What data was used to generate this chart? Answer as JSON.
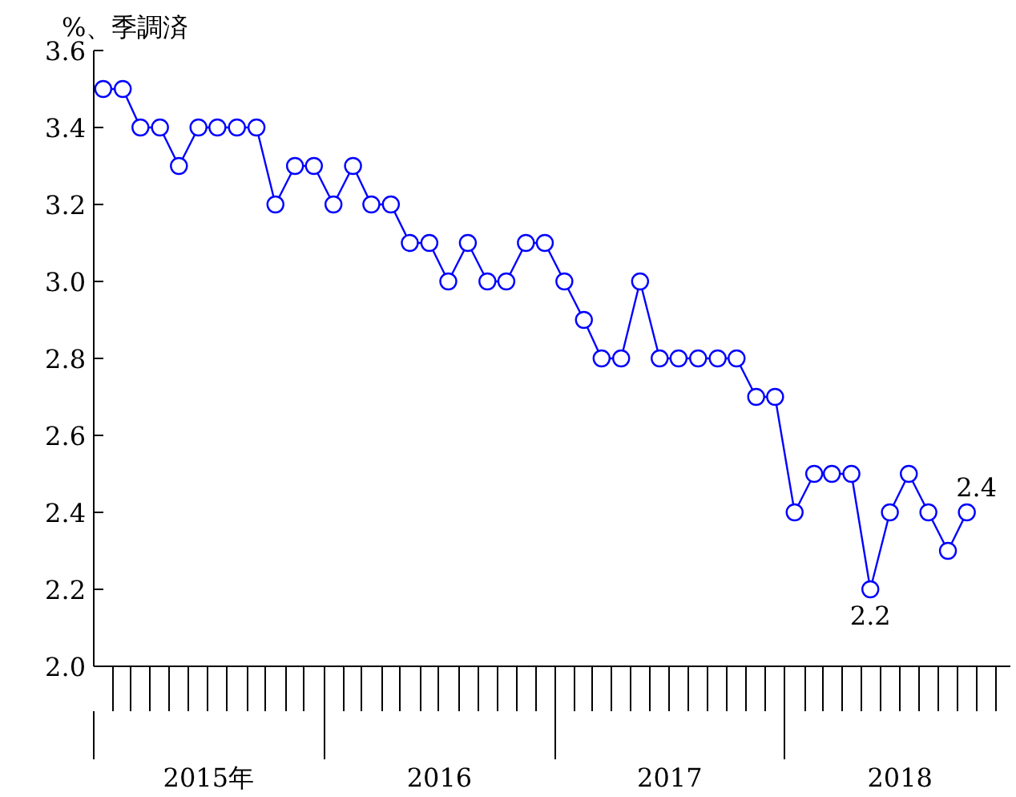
{
  "chart_data": {
    "type": "line",
    "ylabel": "%、季調済",
    "x": [
      "2015-01-16",
      "2015-02-16",
      "2015-03-16",
      "2015-04-16",
      "2015-05-16",
      "2015-06-16",
      "2015-07-16",
      "2015-08-16",
      "2015-09-16",
      "2015-10-16",
      "2015-11-16",
      "2015-12-16",
      "2016-01-16",
      "2016-02-16",
      "2016-03-16",
      "2016-04-16",
      "2016-05-16",
      "2016-06-16",
      "2016-07-16",
      "2016-08-16",
      "2016-09-16",
      "2016-10-16",
      "2016-11-16",
      "2016-12-16",
      "2017-01-16",
      "2017-02-16",
      "2017-03-16",
      "2017-04-16",
      "2017-05-16",
      "2017-06-16",
      "2017-07-16",
      "2017-08-16",
      "2017-09-16",
      "2017-10-16",
      "2017-11-16",
      "2017-12-16",
      "2018-01-16",
      "2018-02-16",
      "2018-03-16",
      "2018-04-16",
      "2018-05-16",
      "2018-06-16",
      "2018-07-16",
      "2018-08-16",
      "2018-09-16",
      "2018-10-16"
    ],
    "series": [
      {
        "color": "#0000ff",
        "values": [
          3.5,
          3.5,
          3.4,
          3.4,
          3.3,
          3.4,
          3.4,
          3.4,
          3.4,
          3.2,
          3.3,
          3.3,
          3.2,
          3.3,
          3.2,
          3.2,
          3.1,
          3.1,
          3.0,
          3.1,
          3.0,
          3.0,
          3.1,
          3.1,
          3.0,
          2.9,
          2.8,
          2.8,
          3.0,
          2.8,
          2.8,
          2.8,
          2.8,
          2.8,
          2.7,
          2.7,
          2.4,
          2.5,
          2.5,
          2.5,
          2.2,
          2.4,
          2.5,
          2.4,
          2.3,
          2.4
        ]
      }
    ],
    "marker": "circle",
    "line_style": "solid",
    "grid": false,
    "ylim": [
      2.0,
      3.6
    ],
    "yticks": [
      {
        "value": 2.0,
        "label": "2.0"
      },
      2.2,
      2.4,
      2.6,
      2.8,
      {
        "value": 3.0,
        "label": "3.0"
      },
      3.2,
      3.4,
      3.6
    ],
    "xlim": [
      "2015-01-01",
      "2018-12-24"
    ],
    "xticks": [
      {
        "value": "2015-07-02",
        "label": "2015年"
      },
      {
        "value": "2016-07-02",
        "label": "2016"
      },
      {
        "value": "2017-07-02",
        "label": "2017"
      },
      {
        "value": "2018-07-02",
        "label": "2018"
      }
    ],
    "annotations": [
      {
        "text": "2.2",
        "x": "2018-05-16",
        "y": 2.2
      },
      {
        "text": "2.4",
        "x": "2018-10-16",
        "y": 2.4
      }
    ]
  }
}
